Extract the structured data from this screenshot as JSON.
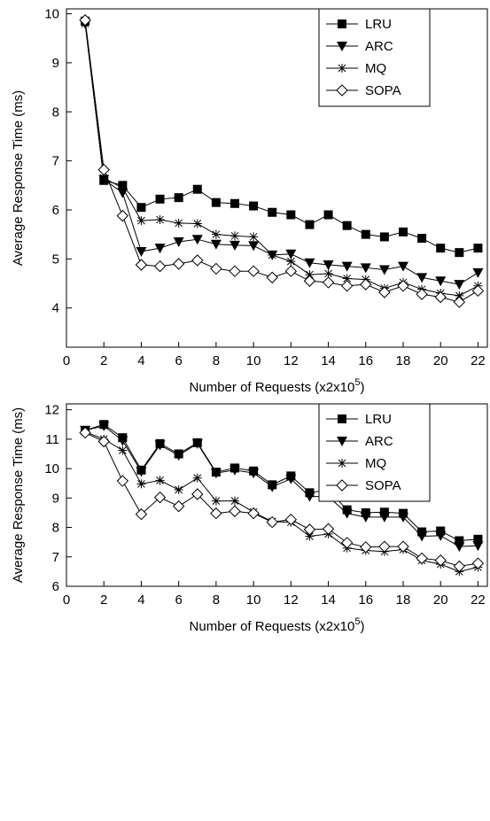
{
  "chart_data": [
    {
      "type": "line",
      "x": [
        1,
        2,
        3,
        4,
        5,
        6,
        7,
        8,
        9,
        10,
        11,
        12,
        13,
        14,
        15,
        16,
        17,
        18,
        19,
        20,
        21,
        22
      ],
      "x_label": "Number of Requests (x2x10",
      "x_label_exponent": "5",
      "x_label_end": ")",
      "y_label": "Average Response Time (ms)",
      "xlim": [
        0,
        22.5
      ],
      "xticks": [
        0,
        2,
        4,
        6,
        8,
        10,
        12,
        14,
        16,
        18,
        20,
        22
      ],
      "ylim": [
        3.2,
        10.1
      ],
      "yticks": [
        4,
        5,
        6,
        7,
        8,
        9,
        10
      ],
      "legend": "upper right",
      "series": [
        {
          "name": "LRU",
          "color": "#000000",
          "marker": "square",
          "values": [
            9.85,
            6.6,
            6.5,
            6.05,
            6.22,
            6.25,
            6.42,
            6.15,
            6.13,
            6.08,
            5.95,
            5.9,
            5.7,
            5.9,
            5.68,
            5.5,
            5.45,
            5.55,
            5.42,
            5.22,
            5.13,
            5.22
          ]
        },
        {
          "name": "ARC",
          "color": "#000000",
          "marker": "triangle-down",
          "values": [
            9.8,
            6.62,
            6.35,
            5.15,
            5.22,
            5.35,
            5.4,
            5.3,
            5.28,
            5.27,
            5.08,
            5.1,
            4.92,
            4.88,
            4.85,
            4.82,
            4.78,
            4.85,
            4.62,
            4.55,
            4.48,
            4.72
          ]
        },
        {
          "name": "MQ",
          "color": "#000000",
          "marker": "asterisk",
          "values": [
            9.8,
            6.65,
            6.45,
            5.78,
            5.8,
            5.73,
            5.72,
            5.5,
            5.47,
            5.45,
            5.08,
            4.95,
            4.68,
            4.7,
            4.6,
            4.58,
            4.4,
            4.52,
            4.38,
            4.3,
            4.25,
            4.45
          ]
        },
        {
          "name": "SOPA",
          "color": "#000000",
          "marker": "diamond-open",
          "values": [
            9.87,
            6.82,
            5.88,
            4.88,
            4.85,
            4.9,
            4.97,
            4.8,
            4.75,
            4.75,
            4.62,
            4.75,
            4.55,
            4.52,
            4.45,
            4.48,
            4.32,
            4.45,
            4.28,
            4.22,
            4.12,
            4.35
          ]
        }
      ]
    },
    {
      "type": "line",
      "x": [
        1,
        2,
        3,
        4,
        5,
        6,
        7,
        8,
        9,
        10,
        11,
        12,
        13,
        14,
        15,
        16,
        17,
        18,
        19,
        20,
        21,
        22
      ],
      "x_label": "Number of Requests (x2x10",
      "x_label_exponent": "5",
      "x_label_end": ")",
      "y_label": "Average Response Time (ms)",
      "xlim": [
        0,
        22.5
      ],
      "xticks": [
        0,
        2,
        4,
        6,
        8,
        10,
        12,
        14,
        16,
        18,
        20,
        22
      ],
      "ylim": [
        6,
        12.2
      ],
      "yticks": [
        6,
        7,
        8,
        9,
        10,
        11,
        12
      ],
      "legend": "upper right",
      "series": [
        {
          "name": "LRU",
          "color": "#000000",
          "marker": "square",
          "values": [
            11.3,
            11.5,
            11.05,
            9.95,
            10.85,
            10.5,
            10.88,
            9.88,
            10.02,
            9.92,
            9.45,
            9.75,
            9.18,
            9.28,
            8.6,
            8.5,
            8.52,
            8.48,
            7.85,
            7.88,
            7.55,
            7.6
          ]
        },
        {
          "name": "ARC",
          "color": "#000000",
          "marker": "triangle-down",
          "values": [
            11.3,
            11.45,
            10.95,
            9.9,
            10.8,
            10.45,
            10.85,
            9.85,
            9.95,
            9.85,
            9.38,
            9.65,
            9.05,
            9.05,
            8.48,
            8.35,
            8.35,
            8.35,
            7.7,
            7.72,
            7.35,
            7.38
          ]
        },
        {
          "name": "MQ",
          "color": "#000000",
          "marker": "asterisk",
          "values": [
            11.25,
            11.0,
            10.62,
            9.48,
            9.6,
            9.28,
            9.68,
            8.9,
            8.9,
            8.52,
            8.2,
            8.18,
            7.7,
            7.78,
            7.3,
            7.22,
            7.18,
            7.25,
            6.88,
            6.75,
            6.5,
            6.65
          ]
        },
        {
          "name": "SOPA",
          "color": "#000000",
          "marker": "diamond-open",
          "values": [
            11.22,
            10.92,
            9.58,
            8.45,
            9.02,
            8.72,
            9.13,
            8.48,
            8.55,
            8.48,
            8.18,
            8.27,
            7.93,
            7.95,
            7.48,
            7.33,
            7.35,
            7.35,
            6.95,
            6.88,
            6.68,
            6.78
          ]
        }
      ]
    }
  ]
}
